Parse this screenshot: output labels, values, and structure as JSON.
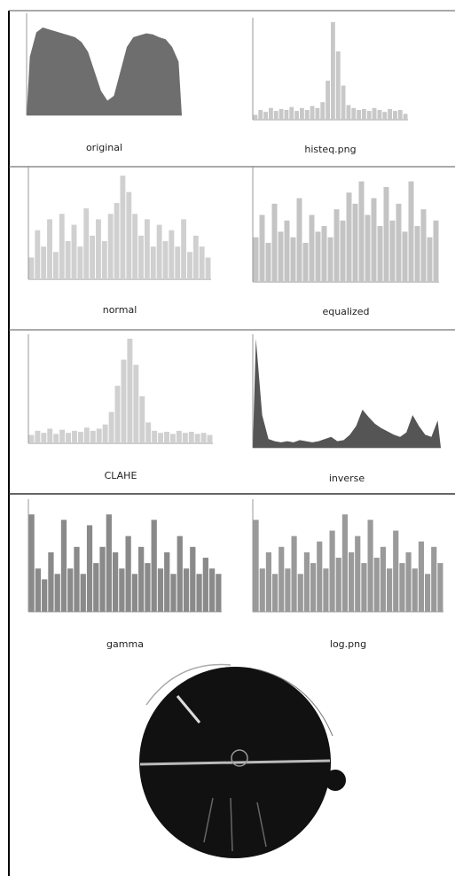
{
  "chart_data": [
    {
      "type": "area",
      "title": "original",
      "color": "#6e6e6e",
      "ylim": [
        0,
        100
      ],
      "values": [
        60,
        85,
        90,
        88,
        86,
        84,
        82,
        80,
        75,
        65,
        45,
        25,
        15,
        20,
        45,
        70,
        80,
        82,
        84,
        83,
        80,
        78,
        70,
        55
      ]
    },
    {
      "type": "bar",
      "title": "histeq.png",
      "color": "#c8c8c8",
      "ylim": [
        0,
        100
      ],
      "values": [
        5,
        10,
        8,
        12,
        9,
        11,
        10,
        13,
        9,
        12,
        10,
        14,
        12,
        18,
        40,
        100,
        70,
        35,
        15,
        12,
        10,
        11,
        9,
        12,
        10,
        8,
        11,
        9,
        10,
        6
      ]
    },
    {
      "type": "bar",
      "title": "normal",
      "color": "#d0d0d0",
      "ylim": [
        0,
        100
      ],
      "values": [
        20,
        45,
        30,
        55,
        25,
        60,
        35,
        50,
        30,
        65,
        40,
        55,
        35,
        60,
        70,
        95,
        80,
        60,
        40,
        55,
        30,
        50,
        35,
        45,
        30,
        55,
        25,
        40,
        30,
        20
      ]
    },
    {
      "type": "bar",
      "title": "equalized",
      "color": "#c4c4c4",
      "ylim": [
        0,
        100
      ],
      "values": [
        40,
        60,
        35,
        70,
        45,
        55,
        40,
        75,
        35,
        60,
        45,
        50,
        40,
        65,
        55,
        80,
        70,
        90,
        60,
        75,
        50,
        85,
        55,
        70,
        45,
        90,
        50,
        65,
        40,
        55
      ]
    },
    {
      "type": "bar",
      "title": "CLAHE",
      "color": "#d0d0d0",
      "ylim": [
        0,
        100
      ],
      "values": [
        8,
        12,
        10,
        14,
        9,
        13,
        10,
        12,
        11,
        15,
        12,
        14,
        18,
        30,
        55,
        80,
        100,
        75,
        45,
        20,
        12,
        10,
        11,
        9,
        12,
        10,
        11,
        9,
        10,
        8
      ]
    },
    {
      "type": "area",
      "title": "inverse",
      "color": "#555555",
      "ylim": [
        0,
        100
      ],
      "values": [
        100,
        30,
        8,
        6,
        5,
        6,
        5,
        7,
        6,
        5,
        6,
        8,
        10,
        6,
        7,
        12,
        20,
        35,
        28,
        22,
        18,
        15,
        12,
        10,
        14,
        30,
        20,
        12,
        10,
        25
      ]
    },
    {
      "type": "bar",
      "title": "gamma",
      "color": "#8a8a8a",
      "ylim": [
        0,
        100
      ],
      "values": [
        90,
        40,
        30,
        55,
        35,
        85,
        40,
        60,
        35,
        80,
        45,
        60,
        90,
        55,
        40,
        70,
        35,
        60,
        45,
        85,
        40,
        55,
        35,
        70,
        40,
        60,
        35,
        50,
        40,
        35
      ]
    },
    {
      "type": "bar",
      "title": "log.png",
      "color": "#9a9a9a",
      "ylim": [
        0,
        100
      ],
      "values": [
        85,
        40,
        55,
        35,
        60,
        40,
        70,
        35,
        55,
        45,
        65,
        40,
        75,
        50,
        90,
        55,
        70,
        45,
        85,
        50,
        60,
        40,
        75,
        45,
        55,
        40,
        65,
        35,
        60,
        45
      ]
    }
  ]
}
